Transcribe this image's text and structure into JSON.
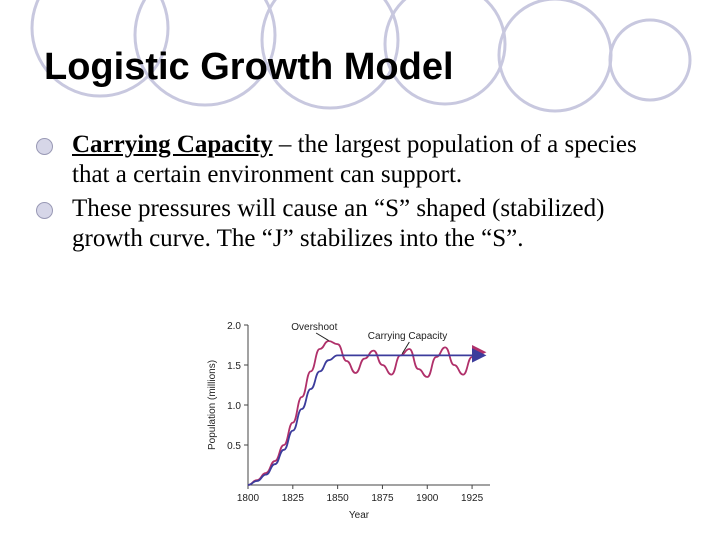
{
  "slide": {
    "title": "Logistic Growth Model",
    "bullets": [
      {
        "term": "Carrying Capacity",
        "text": " – the largest population of a species that a certain environment can support."
      },
      {
        "term": "",
        "text": " These pressures will cause an “S” shaped (stabilized) growth curve. The “J” stabilizes into the “S”."
      }
    ]
  },
  "chart_data": {
    "type": "line",
    "title": "",
    "xlabel": "Year",
    "ylabel": "Population (millions)",
    "xlim": [
      1800,
      1935
    ],
    "ylim": [
      0,
      2.0
    ],
    "x_ticks": [
      "1800",
      "1825",
      "1850",
      "1875",
      "1900",
      "1925"
    ],
    "y_ticks": [
      "0.5",
      "1.0",
      "1.5",
      "2.0"
    ],
    "annotations": [
      "Overshoot",
      "Carrying Capacity"
    ],
    "colors": {
      "overshoot": "#b0306a",
      "carrying": "#3c3c9c"
    },
    "series": [
      {
        "name": "",
        "x": [
          1800,
          1805,
          1810,
          1815,
          1820,
          1825,
          1830,
          1835,
          1840,
          1845,
          1850,
          1855,
          1860,
          1865,
          1870,
          1875,
          1880,
          1885,
          1890,
          1895,
          1900,
          1905,
          1910,
          1915,
          1920,
          1925,
          1930
        ],
        "y": [
          0.0,
          0.06,
          0.15,
          0.3,
          0.5,
          0.78,
          1.1,
          1.42,
          1.7,
          1.8,
          1.76,
          1.55,
          1.4,
          1.58,
          1.68,
          1.5,
          1.38,
          1.62,
          1.7,
          1.45,
          1.35,
          1.6,
          1.72,
          1.5,
          1.38,
          1.6,
          1.66
        ]
      },
      {
        "name": "",
        "x": [
          1800,
          1805,
          1810,
          1815,
          1820,
          1825,
          1830,
          1835,
          1840,
          1845,
          1850,
          1855,
          1860,
          1870,
          1880,
          1890,
          1900,
          1910,
          1920,
          1930
        ],
        "y": [
          0.0,
          0.05,
          0.13,
          0.26,
          0.44,
          0.68,
          0.95,
          1.2,
          1.42,
          1.56,
          1.62,
          1.62,
          1.62,
          1.62,
          1.62,
          1.62,
          1.62,
          1.62,
          1.62,
          1.62
        ]
      }
    ]
  }
}
